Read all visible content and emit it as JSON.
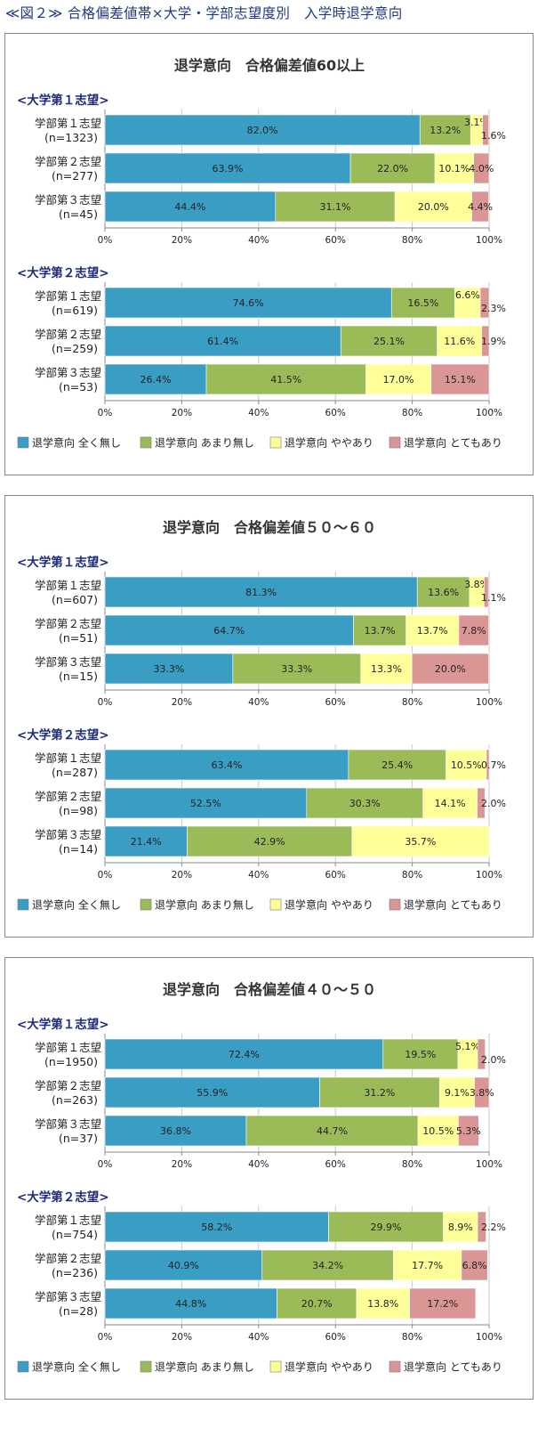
{
  "figure_title": "≪図２≫ 合格偏差値帯×大学・学部志望度別　入学時退学意向",
  "colors": {
    "c1": "#3a9ec4",
    "c2": "#9bbb59",
    "c3": "#ffff99",
    "c4": "#d99694"
  },
  "chart_data": [
    {
      "type": "bar",
      "orientation": "horizontal-stacked-100",
      "title": "退学意向　合格偏差値60以上",
      "xlim": [
        0,
        100
      ],
      "xticks": [
        "0%",
        "20%",
        "40%",
        "60%",
        "80%",
        "100%"
      ],
      "legend": [
        "退学意向 全く無し",
        "退学意向 あまり無し",
        "退学意向 ややあり",
        "退学意向 とてもあり"
      ],
      "legend_position": "bottom",
      "groups": [
        {
          "label": "<大学第１志望>",
          "rows": [
            {
              "label": "学部第１志望",
              "n": "(n=1323)",
              "values": [
                82.0,
                13.2,
                3.1,
                1.6
              ]
            },
            {
              "label": "学部第２志望",
              "n": "(n=277)",
              "values": [
                63.9,
                22.0,
                10.1,
                4.0
              ]
            },
            {
              "label": "学部第３志望",
              "n": "(n=45)",
              "values": [
                44.4,
                31.1,
                20.0,
                4.4
              ]
            }
          ]
        },
        {
          "label": "<大学第２志望>",
          "rows": [
            {
              "label": "学部第１志望",
              "n": "(n=619)",
              "values": [
                74.6,
                16.5,
                6.6,
                2.3
              ]
            },
            {
              "label": "学部第２志望",
              "n": "(n=259)",
              "values": [
                61.4,
                25.1,
                11.6,
                1.9
              ]
            },
            {
              "label": "学部第３志望",
              "n": "(n=53)",
              "values": [
                26.4,
                41.5,
                17.0,
                15.1
              ]
            }
          ]
        }
      ]
    },
    {
      "type": "bar",
      "orientation": "horizontal-stacked-100",
      "title": "退学意向　合格偏差値５０～６０",
      "xlim": [
        0,
        100
      ],
      "xticks": [
        "0%",
        "20%",
        "40%",
        "60%",
        "80%",
        "100%"
      ],
      "legend": [
        "退学意向 全く無し",
        "退学意向 あまり無し",
        "退学意向 ややあり",
        "退学意向 とてもあり"
      ],
      "legend_position": "bottom",
      "groups": [
        {
          "label": "<大学第１志望>",
          "rows": [
            {
              "label": "学部第１志望",
              "n": "(n=607)",
              "values": [
                81.3,
                13.6,
                3.8,
                1.1
              ]
            },
            {
              "label": "学部第２志望",
              "n": "(n=51)",
              "values": [
                64.7,
                13.7,
                13.7,
                7.8
              ]
            },
            {
              "label": "学部第３志望",
              "n": "(n=15)",
              "values": [
                33.3,
                33.3,
                13.3,
                20.0
              ]
            }
          ]
        },
        {
          "label": "<大学第２志望>",
          "rows": [
            {
              "label": "学部第１志望",
              "n": "(n=287)",
              "values": [
                63.4,
                25.4,
                10.5,
                0.7
              ]
            },
            {
              "label": "学部第２志望",
              "n": "(n=98)",
              "values": [
                52.5,
                30.3,
                14.1,
                2.0
              ]
            },
            {
              "label": "学部第３志望",
              "n": "(n=14)",
              "values": [
                21.4,
                42.9,
                35.7,
                null
              ]
            }
          ]
        }
      ]
    },
    {
      "type": "bar",
      "orientation": "horizontal-stacked-100",
      "title": "退学意向　合格偏差値４０～５０",
      "xlim": [
        0,
        100
      ],
      "xticks": [
        "0%",
        "20%",
        "40%",
        "60%",
        "80%",
        "100%"
      ],
      "legend": [
        "退学意向 全く無し",
        "退学意向 あまり無し",
        "退学意向 ややあり",
        "退学意向 とてもあり"
      ],
      "legend_position": "bottom",
      "groups": [
        {
          "label": "<大学第１志望>",
          "rows": [
            {
              "label": "学部第１志望",
              "n": "(n=1950)",
              "values": [
                72.4,
                19.5,
                5.1,
                2.0
              ]
            },
            {
              "label": "学部第２志望",
              "n": "(n=263)",
              "values": [
                55.9,
                31.2,
                9.1,
                3.8
              ]
            },
            {
              "label": "学部第３志望",
              "n": "(n=37)",
              "values": [
                36.8,
                44.7,
                10.5,
                5.3
              ]
            }
          ]
        },
        {
          "label": "<大学第２志望>",
          "rows": [
            {
              "label": "学部第１志望",
              "n": "(n=754)",
              "values": [
                58.2,
                29.9,
                8.9,
                2.2
              ]
            },
            {
              "label": "学部第２志望",
              "n": "(n=236)",
              "values": [
                40.9,
                34.2,
                17.7,
                6.8
              ]
            },
            {
              "label": "学部第３志望",
              "n": "(n=28)",
              "values": [
                44.8,
                20.7,
                13.8,
                17.2
              ]
            }
          ]
        }
      ]
    }
  ]
}
